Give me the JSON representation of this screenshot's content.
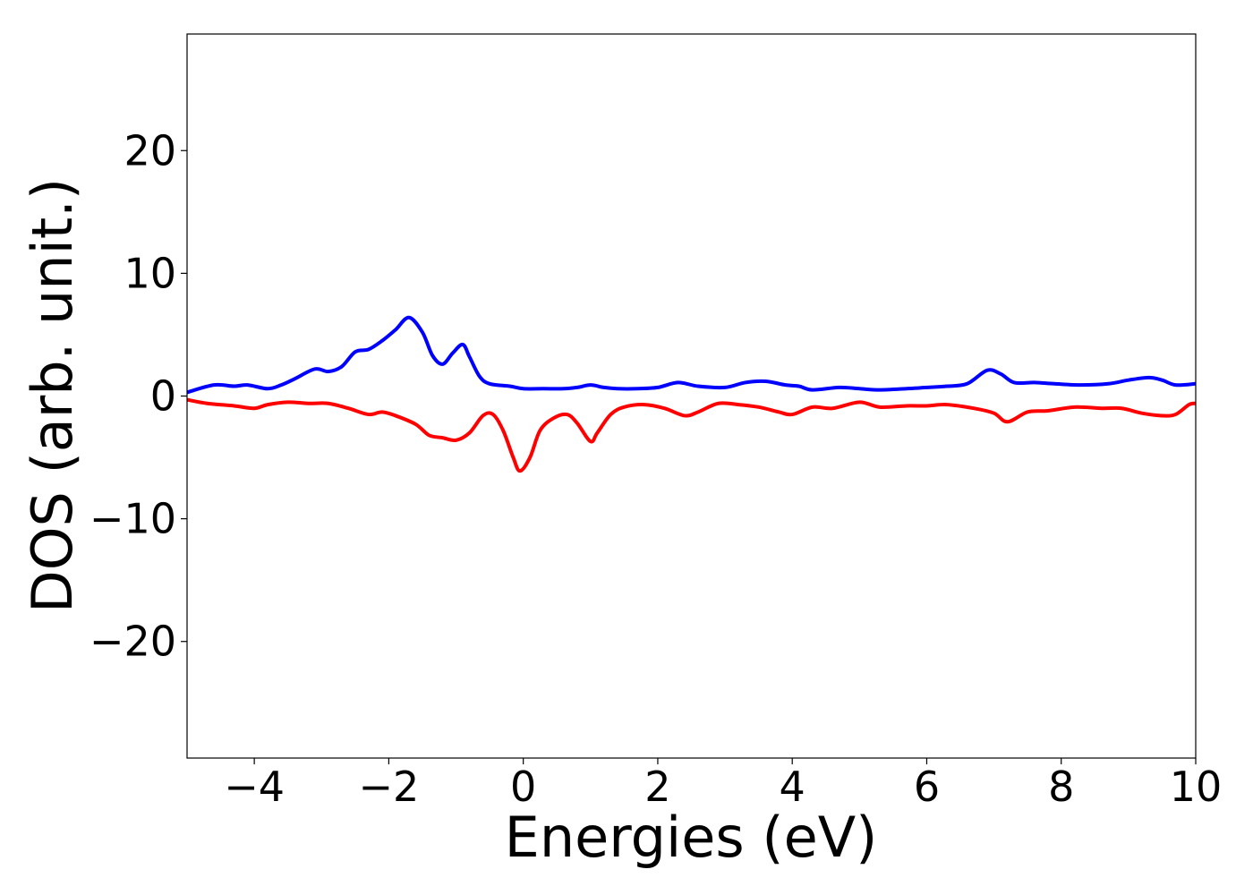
{
  "chart_data": {
    "type": "line",
    "title": "",
    "xlabel": "Energies (eV)",
    "ylabel": "DOS (arb. unit.)",
    "xlim": [
      -5,
      10
    ],
    "ylim": [
      -29.5,
      29.5
    ],
    "xticks": [
      -4,
      -2,
      0,
      2,
      4,
      6,
      8,
      10
    ],
    "xtick_labels": [
      "−4",
      "−2",
      "0",
      "2",
      "4",
      "6",
      "8",
      "10"
    ],
    "yticks": [
      20,
      10,
      0,
      -10,
      -20
    ],
    "ytick_labels": [
      "20",
      "10",
      "0",
      "−10",
      "−20"
    ],
    "grid": false,
    "legend": false,
    "series": [
      {
        "color": "#0000ff",
        "points": [
          [
            -5.0,
            0.3
          ],
          [
            -4.6,
            0.9
          ],
          [
            -4.3,
            0.8
          ],
          [
            -4.1,
            0.9
          ],
          [
            -3.8,
            0.6
          ],
          [
            -3.6,
            0.9
          ],
          [
            -3.4,
            1.4
          ],
          [
            -3.1,
            2.2
          ],
          [
            -2.9,
            2.0
          ],
          [
            -2.7,
            2.4
          ],
          [
            -2.5,
            3.6
          ],
          [
            -2.3,
            3.8
          ],
          [
            -2.1,
            4.5
          ],
          [
            -1.9,
            5.4
          ],
          [
            -1.7,
            6.4
          ],
          [
            -1.5,
            5.2
          ],
          [
            -1.35,
            3.3
          ],
          [
            -1.2,
            2.6
          ],
          [
            -1.05,
            3.5
          ],
          [
            -0.9,
            4.2
          ],
          [
            -0.8,
            3.2
          ],
          [
            -0.65,
            1.6
          ],
          [
            -0.5,
            1.0
          ],
          [
            -0.2,
            0.8
          ],
          [
            0.0,
            0.6
          ],
          [
            0.3,
            0.6
          ],
          [
            0.6,
            0.6
          ],
          [
            0.8,
            0.7
          ],
          [
            1.0,
            0.9
          ],
          [
            1.2,
            0.7
          ],
          [
            1.4,
            0.6
          ],
          [
            1.7,
            0.6
          ],
          [
            2.0,
            0.7
          ],
          [
            2.3,
            1.1
          ],
          [
            2.6,
            0.8
          ],
          [
            3.0,
            0.7
          ],
          [
            3.3,
            1.1
          ],
          [
            3.6,
            1.2
          ],
          [
            3.9,
            0.9
          ],
          [
            4.1,
            0.8
          ],
          [
            4.3,
            0.5
          ],
          [
            4.7,
            0.7
          ],
          [
            5.0,
            0.6
          ],
          [
            5.3,
            0.5
          ],
          [
            5.7,
            0.6
          ],
          [
            6.0,
            0.7
          ],
          [
            6.3,
            0.8
          ],
          [
            6.6,
            1.0
          ],
          [
            6.9,
            2.1
          ],
          [
            7.1,
            1.8
          ],
          [
            7.3,
            1.1
          ],
          [
            7.6,
            1.1
          ],
          [
            7.9,
            1.0
          ],
          [
            8.3,
            0.9
          ],
          [
            8.7,
            1.0
          ],
          [
            9.0,
            1.3
          ],
          [
            9.3,
            1.5
          ],
          [
            9.5,
            1.3
          ],
          [
            9.7,
            0.9
          ],
          [
            10.0,
            1.0
          ]
        ]
      },
      {
        "color": "#ff0000",
        "points": [
          [
            -5.0,
            -0.3
          ],
          [
            -4.7,
            -0.6
          ],
          [
            -4.3,
            -0.8
          ],
          [
            -4.0,
            -1.0
          ],
          [
            -3.8,
            -0.7
          ],
          [
            -3.5,
            -0.5
          ],
          [
            -3.2,
            -0.6
          ],
          [
            -2.9,
            -0.6
          ],
          [
            -2.6,
            -1.0
          ],
          [
            -2.3,
            -1.5
          ],
          [
            -2.1,
            -1.3
          ],
          [
            -1.9,
            -1.6
          ],
          [
            -1.6,
            -2.3
          ],
          [
            -1.4,
            -3.2
          ],
          [
            -1.2,
            -3.4
          ],
          [
            -1.0,
            -3.6
          ],
          [
            -0.8,
            -3.0
          ],
          [
            -0.6,
            -1.6
          ],
          [
            -0.45,
            -1.5
          ],
          [
            -0.3,
            -2.8
          ],
          [
            -0.15,
            -5.0
          ],
          [
            -0.05,
            -6.1
          ],
          [
            0.1,
            -5.0
          ],
          [
            0.25,
            -2.8
          ],
          [
            0.45,
            -1.8
          ],
          [
            0.65,
            -1.5
          ],
          [
            0.8,
            -2.2
          ],
          [
            1.0,
            -3.7
          ],
          [
            1.1,
            -3.0
          ],
          [
            1.3,
            -1.5
          ],
          [
            1.5,
            -0.9
          ],
          [
            1.8,
            -0.7
          ],
          [
            2.1,
            -1.0
          ],
          [
            2.4,
            -1.6
          ],
          [
            2.6,
            -1.3
          ],
          [
            2.9,
            -0.6
          ],
          [
            3.2,
            -0.7
          ],
          [
            3.5,
            -0.9
          ],
          [
            3.8,
            -1.3
          ],
          [
            4.0,
            -1.5
          ],
          [
            4.3,
            -0.9
          ],
          [
            4.6,
            -1.0
          ],
          [
            5.0,
            -0.5
          ],
          [
            5.3,
            -0.9
          ],
          [
            5.7,
            -0.8
          ],
          [
            6.0,
            -0.8
          ],
          [
            6.3,
            -0.7
          ],
          [
            6.7,
            -1.0
          ],
          [
            7.0,
            -1.4
          ],
          [
            7.2,
            -2.1
          ],
          [
            7.5,
            -1.3
          ],
          [
            7.8,
            -1.2
          ],
          [
            8.2,
            -0.9
          ],
          [
            8.6,
            -1.0
          ],
          [
            8.9,
            -1.0
          ],
          [
            9.2,
            -1.4
          ],
          [
            9.5,
            -1.6
          ],
          [
            9.7,
            -1.5
          ],
          [
            9.9,
            -0.7
          ],
          [
            10.0,
            -0.6
          ]
        ]
      }
    ]
  }
}
